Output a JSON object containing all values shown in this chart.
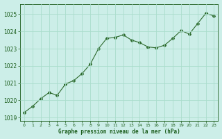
{
  "x": [
    0,
    1,
    2,
    3,
    4,
    5,
    6,
    7,
    8,
    9,
    10,
    11,
    12,
    13,
    14,
    15,
    16,
    17,
    18,
    19,
    20,
    21,
    22,
    23
  ],
  "y": [
    1019.3,
    1019.65,
    1020.1,
    1020.45,
    1020.3,
    1020.95,
    1021.15,
    1021.55,
    1022.1,
    1023.0,
    1023.6,
    1023.65,
    1023.8,
    1023.5,
    1023.35,
    1023.1,
    1023.05,
    1023.2,
    1023.6,
    1024.05,
    1023.85,
    1024.45,
    1025.05,
    1024.9
  ],
  "line_color": "#2d6a2d",
  "marker": "D",
  "marker_size": 2.0,
  "bg_color": "#cceee8",
  "grid_color": "#aaddcc",
  "title": "Graphe pression niveau de la mer (hPa)",
  "title_color": "#1a5c1a",
  "tick_color": "#1a5c1a",
  "ylim": [
    1018.8,
    1025.6
  ],
  "yticks": [
    1019,
    1020,
    1021,
    1022,
    1023,
    1024,
    1025
  ],
  "xticks": [
    0,
    1,
    2,
    3,
    4,
    5,
    6,
    7,
    8,
    9,
    10,
    11,
    12,
    13,
    14,
    15,
    16,
    17,
    18,
    19,
    20,
    21,
    22,
    23
  ]
}
